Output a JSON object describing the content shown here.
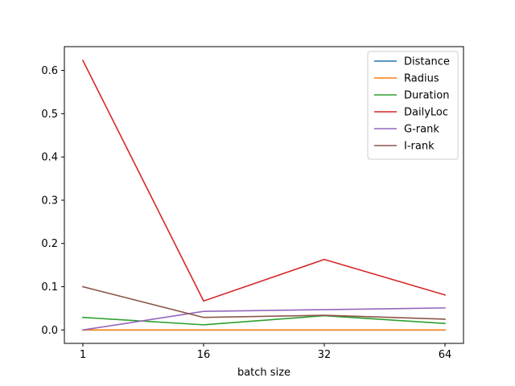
{
  "chart_data": {
    "type": "line",
    "title": "",
    "xlabel": "batch size",
    "ylabel": "",
    "categories": [
      "1",
      "16",
      "32",
      "64"
    ],
    "ylim": [
      -0.031,
      0.655
    ],
    "yticks": [
      0.0,
      0.1,
      0.2,
      0.3,
      0.4,
      0.5,
      0.6
    ],
    "ytick_labels": [
      "0.0",
      "0.1",
      "0.2",
      "0.3",
      "0.4",
      "0.5",
      "0.6"
    ],
    "grid": false,
    "legend_position": "top-right",
    "series": [
      {
        "name": "Distance",
        "color": "#1f77b4",
        "values": [
          0.0,
          0.0,
          0.0,
          0.0
        ]
      },
      {
        "name": "Radius",
        "color": "#ff7f0e",
        "values": [
          0.0,
          0.0,
          0.0,
          0.0
        ]
      },
      {
        "name": "Duration",
        "color": "#2ca02c",
        "values": [
          0.029,
          0.012,
          0.033,
          0.015
        ]
      },
      {
        "name": "DailyLoc",
        "color": "#d62728",
        "values": [
          0.623,
          0.067,
          0.163,
          0.081
        ]
      },
      {
        "name": "G-rank",
        "color": "#9467bd",
        "values": [
          0.0,
          0.043,
          0.047,
          0.051
        ]
      },
      {
        "name": "I-rank",
        "color": "#8c564b",
        "values": [
          0.1,
          0.029,
          0.034,
          0.025
        ]
      }
    ]
  }
}
